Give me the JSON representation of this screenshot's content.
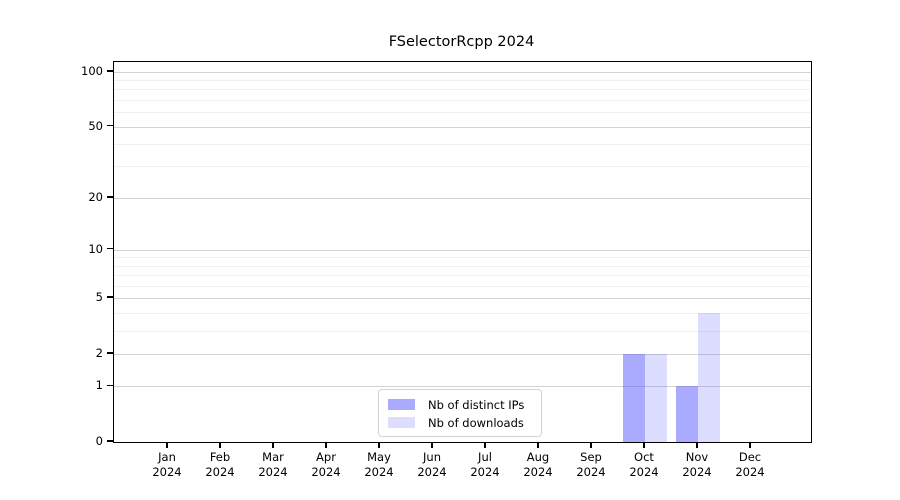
{
  "chart_data": {
    "type": "bar",
    "title": "FSelectorRcpp 2024",
    "scale": "log1p",
    "categories": [
      "Jan",
      "Feb",
      "Mar",
      "Apr",
      "May",
      "Jun",
      "Jul",
      "Aug",
      "Sep",
      "Oct",
      "Nov",
      "Dec"
    ],
    "year_label": "2024",
    "series": [
      {
        "name": "Nb of distinct IPs",
        "color": "rgba(85,85,255,0.5)",
        "values": [
          0,
          0,
          0,
          0,
          0,
          0,
          0,
          0,
          0,
          2,
          1,
          0
        ]
      },
      {
        "name": "Nb of downloads",
        "color": "rgba(85,85,255,0.2)",
        "values": [
          0,
          0,
          0,
          0,
          0,
          0,
          0,
          0,
          0,
          2,
          4,
          0
        ]
      }
    ],
    "y_ticks": [
      0,
      1,
      2,
      5,
      10,
      20,
      50,
      100
    ],
    "y_minor_gridlines": [
      3,
      4,
      6,
      7,
      8,
      9,
      30,
      40,
      60,
      70,
      80,
      90
    ],
    "ylim": [
      0,
      113
    ],
    "xlabel": "",
    "ylabel": "",
    "grid": "both",
    "legend_position": "bottom-center"
  },
  "colors": {
    "bar_distinct_ips_displayed": "#aaaaff",
    "bar_downloads_displayed": "#ddddff",
    "grid_major": "#d4d4d4",
    "grid_minor": "#f0f0f0",
    "axis": "#000000",
    "legend_border": "#d2d2d2",
    "background": "#ffffff"
  }
}
